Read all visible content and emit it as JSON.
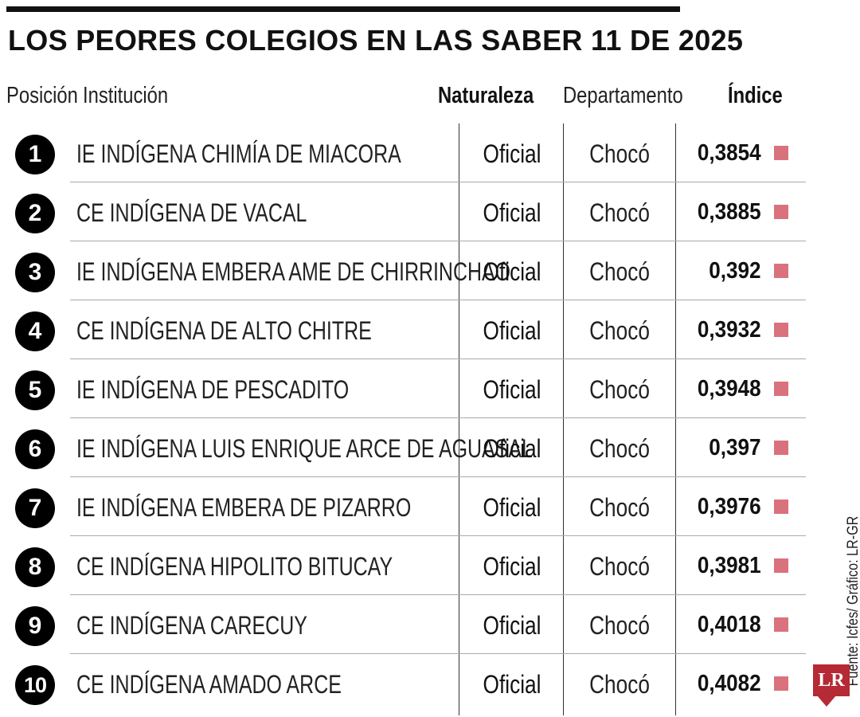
{
  "title": "LOS PEORES COLEGIOS EN LAS SABER 11 DE 2025",
  "headers": {
    "position": "Posición",
    "institution": "Institución",
    "nature": "Naturaleza",
    "department": "Departamento",
    "index": "Índice"
  },
  "source": "Fuente: Icfes/ Gráfico: LR-GR",
  "logo_text": "LR",
  "colors": {
    "accent": "#d9727d",
    "logo": "#b52a34",
    "badge": "#000000"
  },
  "chart_data": {
    "type": "table",
    "columns": [
      "Posición",
      "Institución",
      "Naturaleza",
      "Departamento",
      "Índice"
    ],
    "rows": [
      {
        "position": "1",
        "institution": "IE INDÍGENA CHIMÍA DE MIACORA",
        "nature": "Oficial",
        "department": "Chocó",
        "index": "0,3854"
      },
      {
        "position": "2",
        "institution": "CE INDÍGENA DE VACAL",
        "nature": "Oficial",
        "department": "Chocó",
        "index": "0,3885"
      },
      {
        "position": "3",
        "institution": "IE INDÍGENA EMBERA AME DE CHIRRINCHAO",
        "nature": "Oficial",
        "department": "Chocó",
        "index": "0,392"
      },
      {
        "position": "4",
        "institution": "CE INDÍGENA DE ALTO CHITRE",
        "nature": "Oficial",
        "department": "Chocó",
        "index": "0,3932"
      },
      {
        "position": "5",
        "institution": "IE INDÍGENA DE PESCADITO",
        "nature": "Oficial",
        "department": "Chocó",
        "index": "0,3948"
      },
      {
        "position": "6",
        "institution": "IE INDÍGENA LUIS ENRIQUE ARCE DE AGUASAL",
        "nature": "Oficial",
        "department": "Chocó",
        "index": "0,397"
      },
      {
        "position": "7",
        "institution": "IE INDÍGENA EMBERA DE PIZARRO",
        "nature": "Oficial",
        "department": "Chocó",
        "index": "0,3976"
      },
      {
        "position": "8",
        "institution": "CE INDÍGENA HIPOLITO BITUCAY",
        "nature": "Oficial",
        "department": "Chocó",
        "index": "0,3981"
      },
      {
        "position": "9",
        "institution": "CE INDÍGENA CARECUY",
        "nature": "Oficial",
        "department": "Chocó",
        "index": "0,4018"
      },
      {
        "position": "10",
        "institution": "CE INDÍGENA AMADO ARCE",
        "nature": "Oficial",
        "department": "Chocó",
        "index": "0,4082"
      }
    ]
  }
}
